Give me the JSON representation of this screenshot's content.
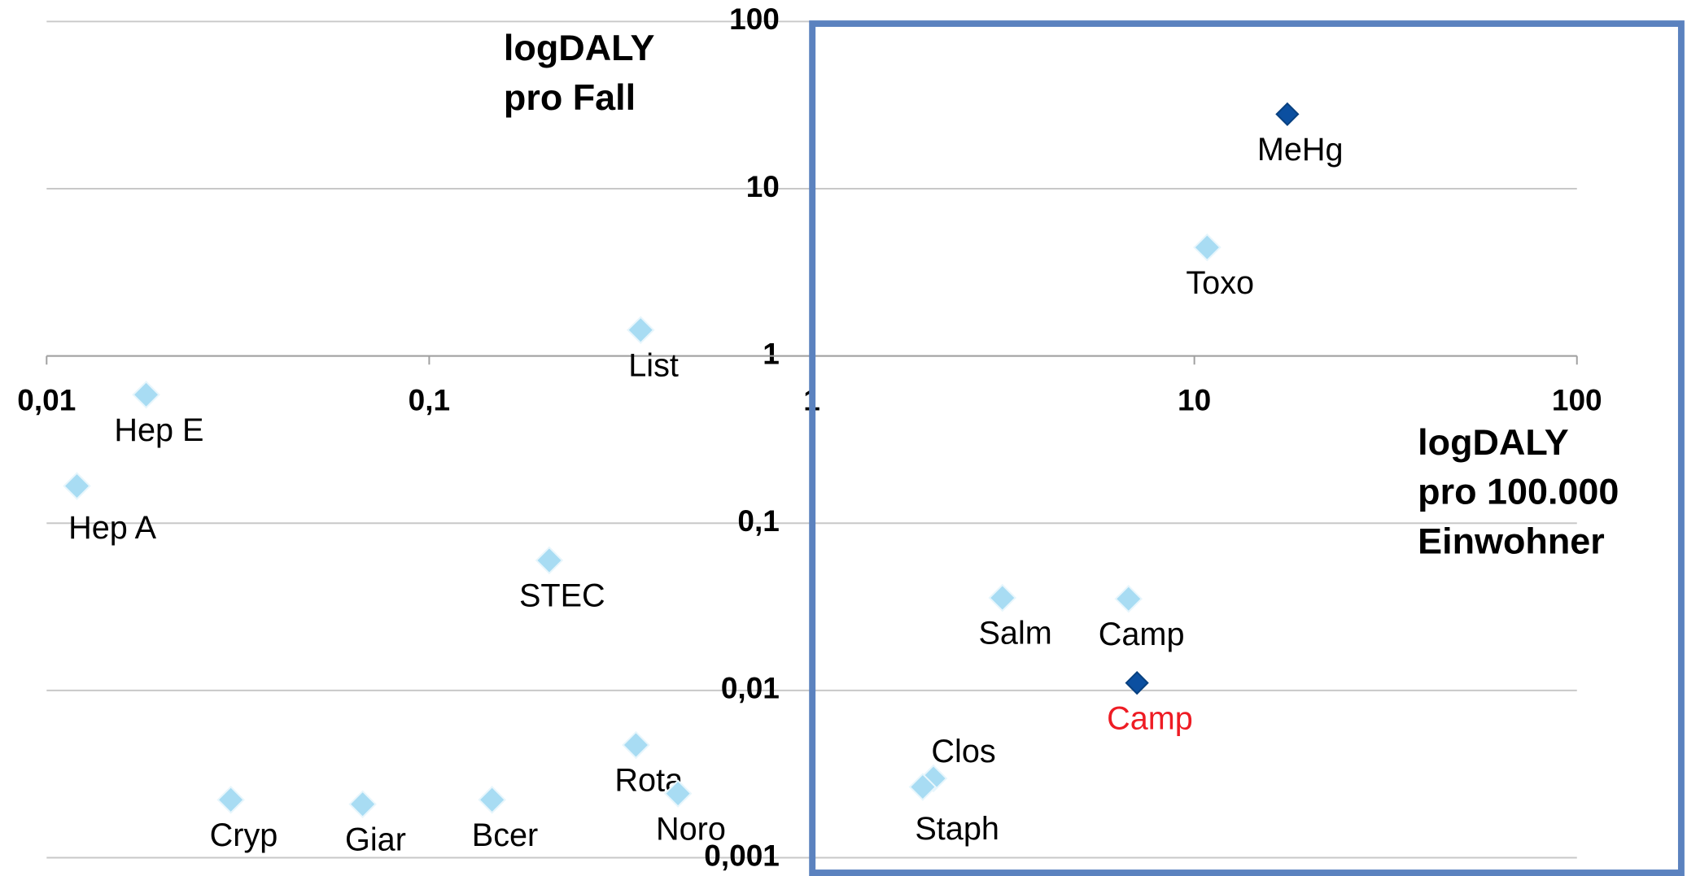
{
  "chart_data": {
    "type": "scatter",
    "xscale": "log",
    "yscale": "log",
    "xlim": [
      0.01,
      100
    ],
    "ylim": [
      0.001,
      100
    ],
    "xticks": [
      {
        "value": 0.01,
        "label": "0,01"
      },
      {
        "value": 0.1,
        "label": "0,1"
      },
      1,
      10,
      100
    ],
    "yticks": [
      {
        "value": 0.001,
        "label": "0,001"
      },
      {
        "value": 0.01,
        "label": "0,01"
      },
      {
        "value": 0.1,
        "label": "0,1"
      },
      1,
      10,
      100
    ],
    "grid": true,
    "ylabel": [
      "logDALY",
      "pro Fall"
    ],
    "xlabel": [
      "logDALY",
      "pro 100.000",
      "Einwohner"
    ],
    "series": [
      {
        "color": "#a8dcf3",
        "marker": "diamond",
        "labels": [
          "Toxo",
          "List",
          "Hep E",
          "Hep A",
          "STEC",
          "Salm",
          "Camp",
          "Rota",
          "Noro",
          "Clos",
          "Staph",
          "Cryp",
          "Giar",
          "Bcer"
        ],
        "label_color": "#000000",
        "x": [
          10.8,
          0.357,
          0.0182,
          0.012,
          0.206,
          3.15,
          6.73,
          0.347,
          0.447,
          2.08,
          1.95,
          0.0303,
          0.067,
          0.146
        ],
        "values": [
          4.46,
          1.43,
          0.587,
          0.167,
          0.06,
          0.0358,
          0.0353,
          0.00472,
          0.00242,
          0.00298,
          0.00265,
          0.00222,
          0.00209,
          0.00222
        ]
      },
      {
        "color": "#0b4fa0",
        "marker": "diamond",
        "labels": [
          "MeHg",
          "Camp"
        ],
        "label_colors": [
          "#000000",
          "#ee1c24"
        ],
        "x": [
          17.5,
          7.08
        ],
        "values": [
          27.9,
          0.0111
        ]
      }
    ]
  }
}
